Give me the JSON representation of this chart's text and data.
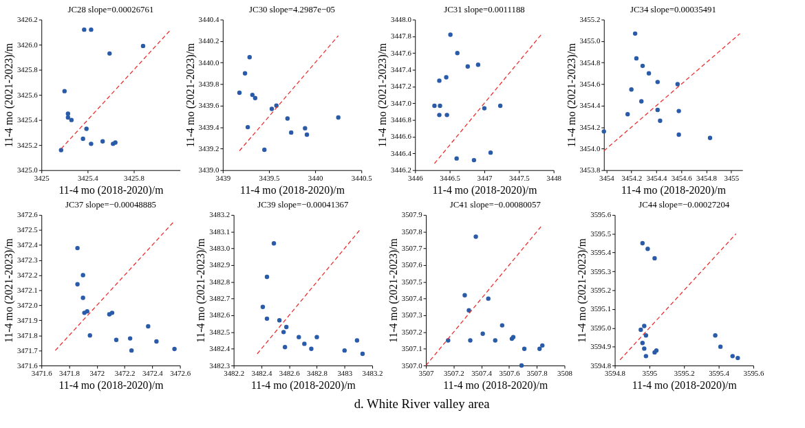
{
  "chart_data": [
    {
      "type": "scatter",
      "title": "JC28  slope=0.00026761",
      "xlabel": "11-4 mo (2018-2020)/m",
      "ylabel": "11-4 mo (2021-2023)/m",
      "line_style": "dashed",
      "xlim": [
        3425,
        3426.2
      ],
      "xticks": [
        3425,
        3425.4,
        3425.8
      ],
      "ylim": [
        3425,
        3426.2
      ],
      "yticks": [
        {
          "value": 3425,
          "label": "3425.0"
        },
        3425.2,
        3425.4,
        3425.6,
        3425.8,
        {
          "value": 3426,
          "label": "3426.0"
        },
        3426.2
      ],
      "series": [
        {
          "type": "scatter",
          "color": "#2a5ba8",
          "marker": "circle",
          "x": [
            3425.17,
            3425.2,
            3425.23,
            3425.23,
            3425.26,
            3425.37,
            3425.43,
            3425.39,
            3425.36,
            3425.43,
            3425.53,
            3425.59,
            3425.62,
            3425.64,
            3425.88
          ],
          "values": [
            3425.16,
            3425.63,
            3425.45,
            3425.42,
            3425.4,
            3426.12,
            3426.12,
            3425.33,
            3425.25,
            3425.21,
            3425.23,
            3425.93,
            3425.21,
            3425.22,
            3425.99
          ]
        },
        {
          "type": "line",
          "color": "#ee2b2b",
          "x": [
            3425.17,
            3426.11
          ],
          "values": [
            3425.17,
            3426.11
          ]
        }
      ]
    },
    {
      "type": "scatter",
      "title": "JC30  slope=4.2987e−05",
      "xlabel": "11-4 mo (2018-2020)/m",
      "ylabel": "11-4 mo (2021-2023)/m",
      "line_style": "dashed",
      "xlim": [
        3439,
        3440.5
      ],
      "xticks": [
        3439,
        3439.5,
        3440,
        3440.5
      ],
      "ylim": [
        3439,
        3440.4
      ],
      "yticks": [
        {
          "value": 3439,
          "label": "3439.0"
        },
        3439.2,
        3439.4,
        3439.6,
        3439.8,
        {
          "value": 3440,
          "label": "3440.0"
        },
        3440.2,
        3440.4
      ],
      "series": [
        {
          "type": "scatter",
          "color": "#2a5ba8",
          "marker": "circle",
          "x": [
            3439.18,
            3439.24,
            3439.29,
            3439.32,
            3439.35,
            3439.27,
            3439.45,
            3439.53,
            3439.58,
            3439.7,
            3439.74,
            3439.89,
            3439.91,
            3440.25
          ],
          "values": [
            3439.72,
            3439.9,
            3440.05,
            3439.7,
            3439.67,
            3439.4,
            3439.19,
            3439.57,
            3439.6,
            3439.48,
            3439.35,
            3439.39,
            3439.33,
            3439.49
          ]
        },
        {
          "type": "line",
          "color": "#ee2b2b",
          "x": [
            3439.18,
            3440.25
          ],
          "values": [
            3439.18,
            3440.25
          ]
        }
      ]
    },
    {
      "type": "scatter",
      "title": "JC31  slope=0.0011188",
      "xlabel": "11-4 mo (2018-2020)/m",
      "ylabel": "11-4 mo (2021-2023)/m",
      "line_style": "dashed",
      "xlim": [
        3446,
        3448
      ],
      "xticks": [
        3446,
        3446.5,
        3447,
        3447.5,
        3448
      ],
      "ylim": [
        3446.2,
        3448
      ],
      "yticks": [
        3446.2,
        3446.4,
        3446.6,
        3446.8,
        {
          "value": 3447,
          "label": "3447.0"
        },
        3447.2,
        3447.4,
        3447.6,
        3447.8,
        {
          "value": 3448,
          "label": "3448.0"
        }
      ],
      "series": [
        {
          "type": "scatter",
          "color": "#2a5ba8",
          "marker": "circle",
          "x": [
            3446.28,
            3446.36,
            3446.35,
            3446.45,
            3446.35,
            3446.46,
            3446.51,
            3446.61,
            3446.76,
            3446.91,
            3447.0,
            3447.23,
            3446.6,
            3446.85,
            3447.09
          ],
          "values": [
            3446.97,
            3446.97,
            3447.27,
            3447.31,
            3446.86,
            3446.86,
            3447.82,
            3447.6,
            3447.44,
            3447.46,
            3446.94,
            3446.97,
            3446.34,
            3446.32,
            3446.41
          ]
        },
        {
          "type": "line",
          "color": "#ee2b2b",
          "x": [
            3446.28,
            3447.82
          ],
          "values": [
            3446.28,
            3447.82
          ]
        }
      ]
    },
    {
      "type": "scatter",
      "title": "JC34  slope=0.00035491",
      "xlabel": "11-4 mo (2018-2020)/m",
      "ylabel": "11-4 mo (2021-2023)/m",
      "line_style": "dashed",
      "xlim": [
        3453.98,
        3455.09
      ],
      "xticks": [
        3454,
        3454.2,
        3454.4,
        3454.6,
        3454.8,
        3455
      ],
      "ylim": [
        3453.8,
        3455.2
      ],
      "yticks": [
        3453.8,
        {
          "value": 3454,
          "label": "3454.0"
        },
        3454.2,
        3454.4,
        3454.6,
        3454.8,
        {
          "value": 3455,
          "label": "3455.0"
        },
        3455.2
      ],
      "series": [
        {
          "type": "scatter",
          "color": "#2a5ba8",
          "marker": "circle",
          "x": [
            3453.98,
            3454.17,
            3454.2,
            3454.23,
            3454.24,
            3454.29,
            3454.28,
            3454.34,
            3454.41,
            3454.41,
            3454.43,
            3454.57,
            3454.58,
            3454.58,
            3454.83
          ],
          "values": [
            3454.16,
            3454.32,
            3454.55,
            3455.07,
            3454.84,
            3454.77,
            3454.44,
            3454.7,
            3454.62,
            3454.36,
            3454.26,
            3454.6,
            3454.35,
            3454.13,
            3454.1
          ]
        },
        {
          "type": "line",
          "color": "#ee2b2b",
          "x": [
            3453.98,
            3455.07
          ],
          "values": [
            3453.98,
            3455.07
          ]
        }
      ]
    },
    {
      "type": "scatter",
      "title": "JC37  slope=−0.00048885",
      "xlabel": "11-4 mo (2018-2020)/m",
      "ylabel": "11-4 mo (2021-2023)/m",
      "line_style": "dashed",
      "xlim": [
        3471.6,
        3472.6
      ],
      "xticks": [
        3471.6,
        3471.8,
        3472,
        3472.2,
        3472.4,
        3472.6
      ],
      "ylim": [
        3471.6,
        3472.6
      ],
      "yticks": [
        3471.6,
        3471.7,
        3471.8,
        3471.9,
        {
          "value": 3472,
          "label": "3472.0"
        },
        3472.1,
        3472.2,
        3472.3,
        3472.4,
        3472.5,
        3472.6
      ],
      "series": [
        {
          "type": "scatter",
          "color": "#2a5ba8",
          "marker": "circle",
          "x": [
            3471.86,
            3471.9,
            3471.86,
            3471.9,
            3471.91,
            3471.93,
            3471.95,
            3472.09,
            3472.11,
            3472.14,
            3472.24,
            3472.25,
            3472.37,
            3472.43,
            3472.56
          ],
          "values": [
            3472.38,
            3472.2,
            3472.14,
            3472.05,
            3471.95,
            3471.96,
            3471.8,
            3471.94,
            3471.95,
            3471.77,
            3471.78,
            3471.7,
            3471.86,
            3471.76,
            3471.71
          ]
        },
        {
          "type": "line",
          "color": "#ee2b2b",
          "x": [
            3471.7,
            3472.56
          ],
          "values": [
            3471.7,
            3472.56
          ]
        }
      ]
    },
    {
      "type": "scatter",
      "title": "JC39  slope=−0.00041367",
      "xlabel": "11-4 mo (2018-2020)/m",
      "ylabel": "11-4 mo (2021-2023)/m",
      "line_style": "dashed",
      "xlim": [
        3482.2,
        3483.2
      ],
      "xticks": [
        3482.2,
        3482.4,
        3482.6,
        3482.8,
        3483,
        3483.2
      ],
      "ylim": [
        3482.3,
        3483.2
      ],
      "yticks": [
        3482.3,
        3482.4,
        3482.5,
        3482.6,
        3482.7,
        3482.8,
        3482.9,
        {
          "value": 3483,
          "label": "3483.0"
        },
        3483.1,
        3483.2
      ],
      "series": [
        {
          "type": "scatter",
          "color": "#2a5ba8",
          "marker": "circle",
          "x": [
            3482.49,
            3482.44,
            3482.41,
            3482.44,
            3482.53,
            3482.58,
            3482.56,
            3482.57,
            3482.67,
            3482.71,
            3482.76,
            3482.8,
            3483.0,
            3483.09,
            3483.13
          ],
          "values": [
            3483.03,
            3482.83,
            3482.65,
            3482.58,
            3482.57,
            3482.53,
            3482.5,
            3482.41,
            3482.47,
            3482.43,
            3482.4,
            3482.47,
            3482.39,
            3482.45,
            3482.37
          ]
        },
        {
          "type": "line",
          "color": "#ee2b2b",
          "x": [
            3482.37,
            3483.12
          ],
          "values": [
            3482.37,
            3483.12
          ]
        }
      ]
    },
    {
      "type": "scatter",
      "title": "JC41  slope=−0.00080057",
      "xlabel": "11-4 mo (2018-2020)/m",
      "ylabel": "11-4 mo (2021-2023)/m",
      "line_style": "dashed",
      "xlim": [
        3507,
        3508
      ],
      "xticks": [
        3507,
        3507.2,
        3507.4,
        3507.6,
        3507.8,
        3508
      ],
      "ylim": [
        3507,
        3507.9
      ],
      "yticks": [
        {
          "value": 3507,
          "label": "3507.0"
        },
        3507.1,
        3507.2,
        3507.3,
        3507.4,
        3507.5,
        3507.6,
        3507.7,
        3507.8,
        3507.9
      ],
      "series": [
        {
          "type": "scatter",
          "color": "#2a5ba8",
          "marker": "circle",
          "x": [
            3507.16,
            3507.28,
            3507.31,
            3507.32,
            3507.36,
            3507.41,
            3507.45,
            3507.5,
            3507.55,
            3507.62,
            3507.63,
            3507.69,
            3507.71,
            3507.82,
            3507.84
          ],
          "values": [
            3507.15,
            3507.42,
            3507.33,
            3507.15,
            3507.77,
            3507.19,
            3507.4,
            3507.15,
            3507.24,
            3507.16,
            3507.17,
            3507.0,
            3507.1,
            3507.1,
            3507.12
          ]
        },
        {
          "type": "line",
          "color": "#ee2b2b",
          "x": [
            3507,
            3507.83
          ],
          "values": [
            3507,
            3507.83
          ]
        }
      ]
    },
    {
      "type": "scatter",
      "title": "JC44  slope=−0.00027204",
      "xlabel": "11-4 mo (2018-2020)/m",
      "ylabel": "11-4 mo (2021-2023)/m",
      "line_style": "dashed",
      "xlim": [
        3594.8,
        3595.6
      ],
      "xticks": [
        3594.8,
        3595,
        3595.2,
        3595.4,
        3595.6
      ],
      "ylim": [
        3594.8,
        3595.6
      ],
      "yticks": [
        3594.8,
        3594.9,
        {
          "value": 3595,
          "label": "3595.0"
        },
        3595.1,
        3595.2,
        3595.3,
        3595.4,
        3595.5,
        3595.6
      ],
      "series": [
        {
          "type": "scatter",
          "color": "#2a5ba8",
          "marker": "circle",
          "x": [
            3594.96,
            3594.99,
            3595.03,
            3594.95,
            3594.97,
            3594.98,
            3594.96,
            3594.97,
            3594.98,
            3595.03,
            3595.04,
            3595.38,
            3595.41,
            3595.48,
            3595.51
          ],
          "values": [
            3595.45,
            3595.42,
            3595.37,
            3594.99,
            3595.01,
            3594.96,
            3594.92,
            3594.89,
            3594.85,
            3594.87,
            3594.88,
            3594.96,
            3594.9,
            3594.85,
            3594.84
          ]
        },
        {
          "type": "line",
          "color": "#ee2b2b",
          "x": [
            3594.83,
            3595.5
          ],
          "values": [
            3594.83,
            3595.5
          ]
        }
      ]
    },
    {
      "type": "other",
      "annotations": [
        "d. White River valley area"
      ]
    }
  ]
}
